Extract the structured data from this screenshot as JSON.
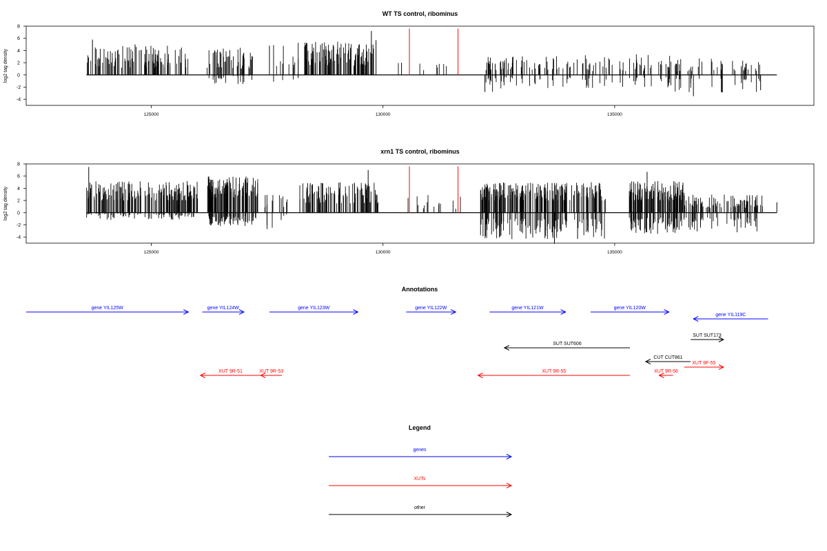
{
  "chart_data": [
    {
      "type": "bar",
      "title": "WT TS control, ribominus",
      "ylabel": "log2 tag density",
      "xlabel": "",
      "ylim": [
        -5,
        8
      ],
      "yticks": [
        -4,
        -2,
        0,
        2,
        4,
        6,
        8
      ],
      "xlim": [
        122300,
        139300
      ],
      "xticks": [
        125000,
        130000,
        135000
      ],
      "xtick_labels": [
        "125000",
        "130000",
        "135000"
      ],
      "grid": false,
      "baseline": {
        "from": 123600,
        "to": 138500
      },
      "markers": [
        {
          "x": 130570,
          "color": "#ff0000"
        },
        {
          "x": 131620,
          "color": "#ff0000"
        }
      ],
      "regions": [
        {
          "from": 123600,
          "to": 125800,
          "pos": [
            1.2,
            4.8
          ],
          "neg": [
            0,
            0
          ],
          "n": 110
        },
        {
          "from": 126200,
          "to": 127200,
          "pos": [
            1.0,
            4.5
          ],
          "neg": [
            0,
            1.5
          ],
          "n": 55
        },
        {
          "from": 127400,
          "to": 128200,
          "pos": [
            0.8,
            5.5
          ],
          "neg": [
            0,
            1.2
          ],
          "n": 12
        },
        {
          "from": 128300,
          "to": 129800,
          "pos": [
            1.5,
            5.5
          ],
          "neg": [
            0,
            0
          ],
          "n": 110
        },
        {
          "from": 130300,
          "to": 131500,
          "pos": [
            0.6,
            2.0
          ],
          "neg": [
            0,
            0
          ],
          "n": 8
        },
        {
          "from": 132200,
          "to": 134200,
          "pos": [
            0.8,
            3.2
          ],
          "neg": [
            0.4,
            3.0
          ],
          "n": 60
        },
        {
          "from": 134300,
          "to": 136300,
          "pos": [
            0.6,
            3.5
          ],
          "neg": [
            0.4,
            2.2
          ],
          "n": 50
        },
        {
          "from": 136300,
          "to": 138200,
          "pos": [
            0.6,
            2.8
          ],
          "neg": [
            0.6,
            3.2
          ],
          "n": 45
        }
      ],
      "peaks": [
        {
          "x": 123730,
          "v": 5.8
        },
        {
          "x": 124650,
          "v": 5.0
        },
        {
          "x": 127550,
          "v": 4.8
        },
        {
          "x": 129750,
          "v": 7.2
        },
        {
          "x": 129850,
          "v": 5.7
        },
        {
          "x": 130400,
          "v": 2.0
        },
        {
          "x": 132200,
          "v": -2.8
        },
        {
          "x": 136700,
          "v": -3.5
        },
        {
          "x": 138150,
          "v": -2.5
        }
      ]
    },
    {
      "type": "bar",
      "title": "xrn1 TS control, ribominus",
      "ylabel": "log2 tag density",
      "xlabel": "",
      "ylim": [
        -5,
        8
      ],
      "yticks": [
        -4,
        -2,
        0,
        2,
        4,
        6,
        8
      ],
      "xlim": [
        122300,
        139300
      ],
      "xticks": [
        125000,
        130000,
        135000
      ],
      "xtick_labels": [
        "125000",
        "130000",
        "135000"
      ],
      "grid": false,
      "baseline": {
        "from": 123600,
        "to": 138500
      },
      "markers": [
        {
          "x": 130570,
          "color": "#ff0000"
        },
        {
          "x": 131620,
          "color": "#ff0000"
        }
      ],
      "regions": [
        {
          "from": 123600,
          "to": 126000,
          "pos": [
            2.0,
            5.2
          ],
          "neg": [
            0,
            1.2
          ],
          "n": 170
        },
        {
          "from": 126200,
          "to": 127300,
          "pos": [
            2.5,
            6.0
          ],
          "neg": [
            0.5,
            2.2
          ],
          "n": 110
        },
        {
          "from": 127400,
          "to": 128000,
          "pos": [
            0.8,
            3.0
          ],
          "neg": [
            0,
            2.8
          ],
          "n": 14
        },
        {
          "from": 128200,
          "to": 129900,
          "pos": [
            1.5,
            5.0
          ],
          "neg": [
            0,
            0
          ],
          "n": 110
        },
        {
          "from": 130400,
          "to": 131700,
          "pos": [
            0.6,
            3.0
          ],
          "neg": [
            0,
            0
          ],
          "n": 14
        },
        {
          "from": 132100,
          "to": 134800,
          "pos": [
            2.0,
            5.0
          ],
          "neg": [
            1.0,
            4.5
          ],
          "n": 220
        },
        {
          "from": 135300,
          "to": 136500,
          "pos": [
            2.0,
            5.2
          ],
          "neg": [
            0.8,
            3.5
          ],
          "n": 110
        },
        {
          "from": 136500,
          "to": 138200,
          "pos": [
            0.8,
            3.0
          ],
          "neg": [
            0.8,
            3.8
          ],
          "n": 90
        }
      ],
      "peaks": [
        {
          "x": 123650,
          "v": 7.5
        },
        {
          "x": 129680,
          "v": 7.0
        },
        {
          "x": 133700,
          "v": -5.1
        },
        {
          "x": 134200,
          "v": -4.3
        },
        {
          "x": 135700,
          "v": 6.7
        },
        {
          "x": 138500,
          "v": 1.7
        }
      ]
    }
  ],
  "annotations": {
    "title": "Annotations",
    "xlim": [
      122300,
      139300
    ],
    "tracks": [
      {
        "label": "gene YIL125W",
        "color": "#0000ff",
        "row": 0,
        "from": 122300,
        "to": 125800,
        "dir": "right"
      },
      {
        "label": "gene YIL124W",
        "color": "#0000ff",
        "row": 0,
        "from": 126100,
        "to": 127000,
        "dir": "right"
      },
      {
        "label": "gene YIL123W",
        "color": "#0000ff",
        "row": 0,
        "from": 127550,
        "to": 129460,
        "dir": "right"
      },
      {
        "label": "gene YIL122W",
        "color": "#0000ff",
        "row": 0,
        "from": 130500,
        "to": 131570,
        "dir": "right"
      },
      {
        "label": "gene YIL121W",
        "color": "#0000ff",
        "row": 0,
        "from": 132300,
        "to": 133940,
        "dir": "right"
      },
      {
        "label": "gene YIL120W",
        "color": "#0000ff",
        "row": 0,
        "from": 134480,
        "to": 136170,
        "dir": "right"
      },
      {
        "label": "gene YIL119C",
        "color": "#0000ff",
        "row": 0.25,
        "from": 136700,
        "to": 138310,
        "dir": "left"
      },
      {
        "label": "SUT SUT173",
        "color": "#000000",
        "row": 1.0,
        "from": 136640,
        "to": 137350,
        "dir": "right"
      },
      {
        "label": "SUT SUT606",
        "color": "#000000",
        "row": 1.3,
        "from": 132620,
        "to": 135330,
        "dir": "left"
      },
      {
        "label": "CUT CUT861",
        "color": "#000000",
        "row": 1.8,
        "from": 135670,
        "to": 136640,
        "dir": "left"
      },
      {
        "label": "XUT 9F-55",
        "color": "#ff0000",
        "row": 2.0,
        "from": 136500,
        "to": 137350,
        "dir": "right"
      },
      {
        "label": "XUT 9R-51",
        "color": "#ff0000",
        "row": 2.3,
        "from": 126060,
        "to": 127360,
        "dir": "left"
      },
      {
        "label": "XUT 9R-53",
        "color": "#ff0000",
        "row": 2.3,
        "from": 127360,
        "to": 127820,
        "dir": "left"
      },
      {
        "label": "XUT 9R-55",
        "color": "#ff0000",
        "row": 2.3,
        "from": 132050,
        "to": 135330,
        "dir": "left"
      },
      {
        "label": "XUT 9R-56",
        "color": "#ff0000",
        "row": 2.3,
        "from": 135960,
        "to": 136260,
        "dir": "left"
      }
    ]
  },
  "legend": {
    "title": "Legend",
    "items": [
      {
        "label": "genes",
        "color": "#0000ff"
      },
      {
        "label": "XUTs",
        "color": "#ff0000"
      },
      {
        "label": "other",
        "color": "#000000"
      }
    ]
  }
}
